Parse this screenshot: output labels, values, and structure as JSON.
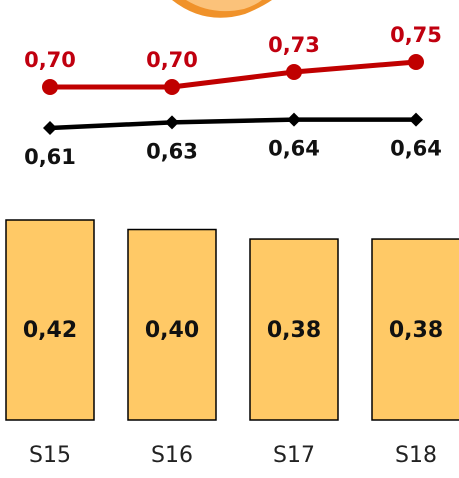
{
  "chart_data": {
    "type": "bar",
    "categories": [
      "S15",
      "S16",
      "S17",
      "S18"
    ],
    "series": [
      {
        "type": "bar",
        "values": [
          "0,42",
          "0,40",
          "0,38",
          "0,38"
        ],
        "numeric": [
          0.42,
          0.4,
          0.38,
          0.38
        ]
      },
      {
        "type": "line",
        "values": [
          "0,70",
          "0,70",
          "0,73",
          "0,75"
        ],
        "numeric": [
          0.7,
          0.7,
          0.73,
          0.75
        ]
      },
      {
        "type": "line",
        "values": [
          "0,61",
          "0,63",
          "0,64",
          "0,64"
        ],
        "numeric": [
          0.61,
          0.63,
          0.64,
          0.64
        ]
      }
    ],
    "colors": {
      "bar_fill": "#FFC966",
      "bar_stroke": "#000000",
      "line_red": "#C00000",
      "line_black": "#000000",
      "label_red": "#C0000F",
      "label_black": "#111111",
      "decor_orange": "#F0922A",
      "decor_fill": "#FBC27A"
    }
  }
}
